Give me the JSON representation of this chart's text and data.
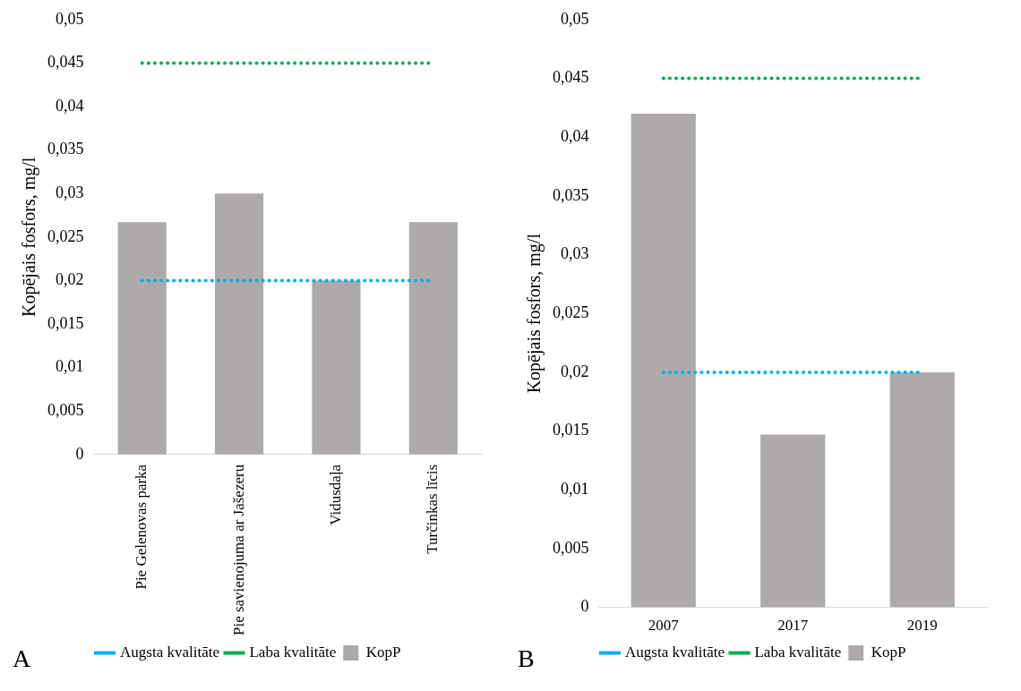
{
  "chart_data": [
    {
      "type": "bar",
      "ylabel": "Kopējais fosfors, mg/l",
      "categories": [
        "Pie Gelenovas parka",
        "Pie savienojuma ar Jašezeru",
        "Vidusdaļa",
        "Turčinkas līcis"
      ],
      "series": [
        {
          "name": "KopP",
          "color": "#aeaaaa",
          "values": [
            0.0267,
            0.03,
            0.02,
            0.0267
          ]
        },
        {
          "name": "Augsta kvalitāte",
          "type": "line",
          "color": "#00b0f0",
          "line_style": "dotted",
          "marker": "none",
          "values": [
            0.02,
            0.02,
            0.02,
            0.02
          ]
        },
        {
          "name": "Laba kvalitāte",
          "type": "line",
          "color": "#00b050",
          "line_style": "dotted",
          "marker": "none",
          "values": [
            0.045,
            0.045,
            0.045,
            0.045
          ]
        }
      ],
      "ylim": [
        0,
        0.05
      ],
      "yticks": [
        {
          "value": 0,
          "label": "0"
        },
        {
          "value": 0.005,
          "label": "0,005"
        },
        {
          "value": 0.01,
          "label": "0,01"
        },
        {
          "value": 0.015,
          "label": "0,015"
        },
        {
          "value": 0.02,
          "label": "0,02"
        },
        {
          "value": 0.025,
          "label": "0,025"
        },
        {
          "value": 0.03,
          "label": "0,03"
        },
        {
          "value": 0.035,
          "label": "0,035"
        },
        {
          "value": 0.04,
          "label": "0,04"
        },
        {
          "value": 0.045,
          "label": "0,045"
        },
        {
          "value": 0.05,
          "label": "0,05"
        }
      ],
      "grid": false,
      "legend": "bottom",
      "annotations": [
        "A"
      ]
    },
    {
      "type": "bar",
      "ylabel": "Kopējais fosfors, mg/l",
      "categories": [
        "2007",
        "2017",
        "2019"
      ],
      "series": [
        {
          "name": "KopP",
          "color": "#aeaaaa",
          "values": [
            0.042,
            0.0147,
            0.02
          ]
        },
        {
          "name": "Augsta kvalitāte",
          "type": "line",
          "color": "#00b0f0",
          "line_style": "dotted",
          "marker": "none",
          "values": [
            0.02,
            0.02,
            0.02
          ]
        },
        {
          "name": "Laba kvalitāte",
          "type": "line",
          "color": "#00b050",
          "line_style": "dotted",
          "marker": "none",
          "values": [
            0.045,
            0.045,
            0.045
          ]
        }
      ],
      "ylim": [
        0,
        0.05
      ],
      "yticks": [
        {
          "value": 0,
          "label": "0"
        },
        {
          "value": 0.005,
          "label": "0,005"
        },
        {
          "value": 0.01,
          "label": "0,01"
        },
        {
          "value": 0.015,
          "label": "0,015"
        },
        {
          "value": 0.02,
          "label": "0,02"
        },
        {
          "value": 0.025,
          "label": "0,025"
        },
        {
          "value": 0.03,
          "label": "0,03"
        },
        {
          "value": 0.035,
          "label": "0,035"
        },
        {
          "value": 0.04,
          "label": "0,04"
        },
        {
          "value": 0.045,
          "label": "0,045"
        },
        {
          "value": 0.05,
          "label": "0,05"
        }
      ],
      "grid": false,
      "legend": "bottom",
      "annotations": [
        "B"
      ]
    }
  ]
}
